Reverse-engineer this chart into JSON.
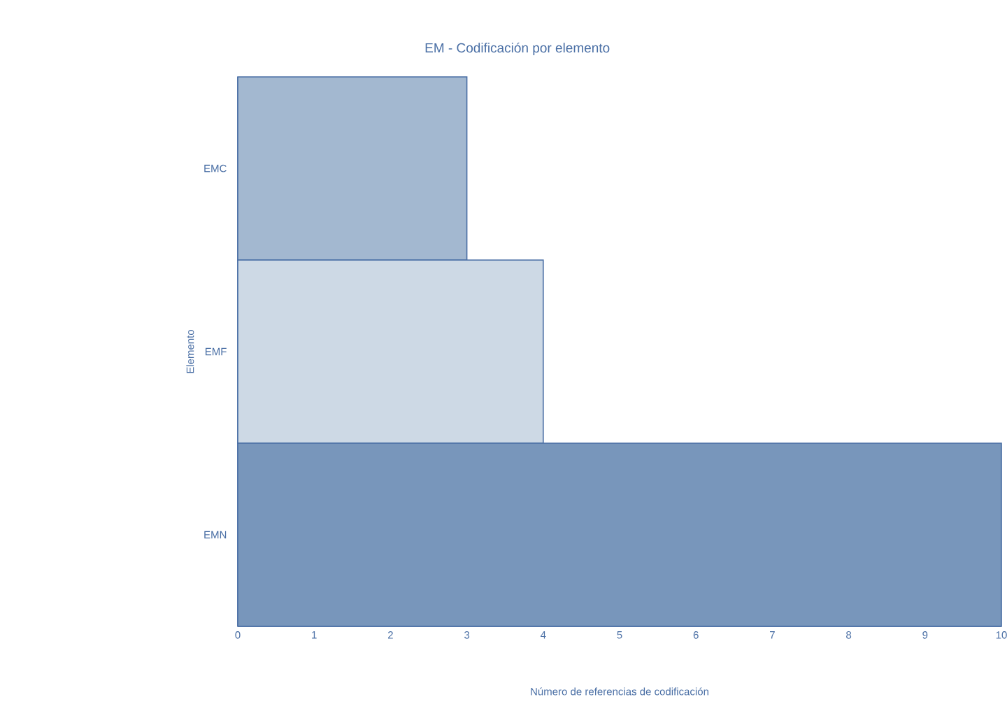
{
  "chart_data": {
    "type": "bar",
    "orientation": "horizontal",
    "title": "EM - Codificación por elemento",
    "xlabel": "Número de referencias de codificación",
    "ylabel": "Elemento",
    "categories": [
      "EMC",
      "EMF",
      "EMN"
    ],
    "values": [
      3,
      4,
      10
    ],
    "colors": [
      "#a3b8d0",
      "#cdd9e5",
      "#7896bb"
    ],
    "xlim": [
      0,
      10
    ],
    "xticks": [
      0,
      1,
      2,
      3,
      4,
      5,
      6,
      7,
      8,
      9,
      10
    ],
    "grid": false
  }
}
